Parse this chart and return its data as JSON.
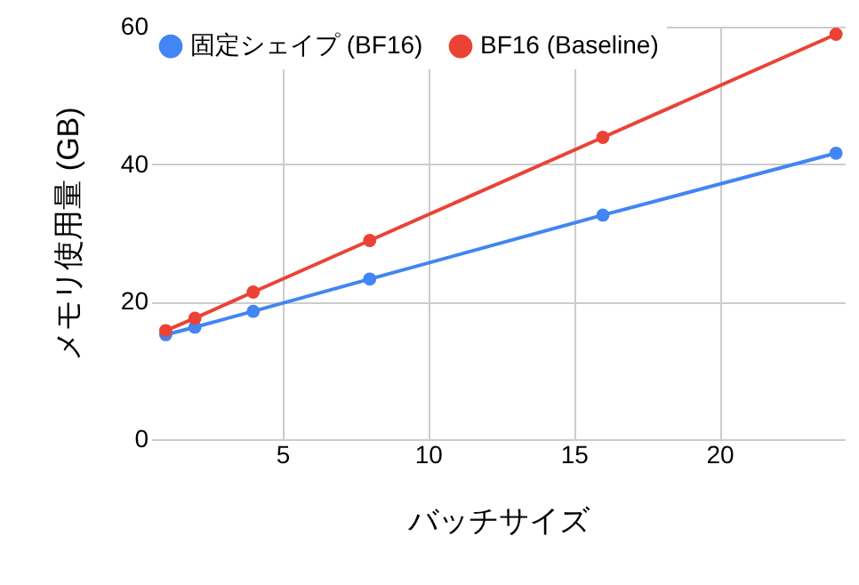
{
  "chart_data": {
    "type": "line",
    "xlabel": "バッチサイズ",
    "ylabel": "メモリ使用量 (GB)",
    "x": [
      1,
      2,
      4,
      8,
      16,
      24
    ],
    "series": [
      {
        "name": "固定シェイプ (BF16)",
        "color": "#4285f4",
        "values": [
          15.2,
          16.3,
          18.6,
          23.3,
          32.6,
          41.6
        ]
      },
      {
        "name": "BF16 (Baseline)",
        "color": "#ea4335",
        "values": [
          15.8,
          17.6,
          21.4,
          28.9,
          43.9,
          58.9
        ]
      }
    ],
    "xlim": [
      0.5,
      24.3
    ],
    "xticks": [
      5,
      10,
      15,
      20
    ],
    "ylim": [
      0,
      60
    ],
    "yticks": [
      0,
      20,
      40,
      60
    ],
    "grid": true,
    "legend": "top left",
    "marker": "circle",
    "line_style": "solid"
  }
}
